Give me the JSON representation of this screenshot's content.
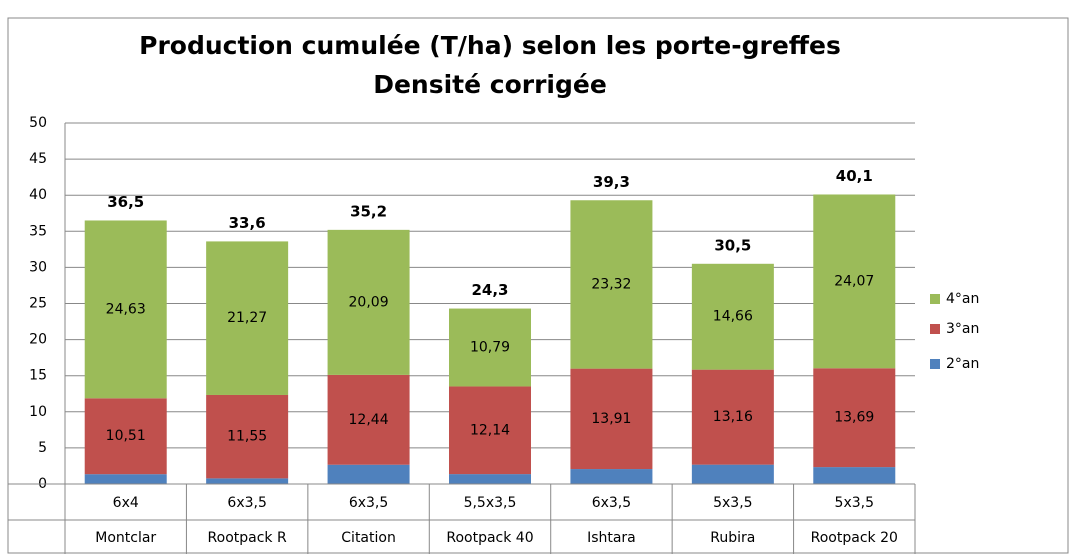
{
  "chart_data": {
    "type": "stacked_bar",
    "title": "Production cumulée (T/ha) selon les porte-greffes",
    "subtitle": "Densité corrigée",
    "categories": [
      "Montclar",
      "Rootpack R",
      "Citation",
      "Rootpack 40",
      "Ishtara",
      "Rubira",
      "Rootpack 20"
    ],
    "subcategories": [
      "6x4",
      "6x3,5",
      "6x3,5",
      "5,5x3,5",
      "6x3,5",
      "5x3,5",
      "5x3,5"
    ],
    "series": [
      {
        "name": "2°an",
        "color": "#4f81bd",
        "values": [
          1.36,
          0.78,
          2.67,
          1.37,
          2.07,
          2.68,
          2.34
        ]
      },
      {
        "name": "3°an",
        "color": "#c0504d",
        "values": [
          10.51,
          11.55,
          12.44,
          12.14,
          13.91,
          13.16,
          13.69
        ],
        "value_labels": [
          "10,51",
          "11,55",
          "12,44",
          "12,14",
          "13,91",
          "13,16",
          "13,69"
        ]
      },
      {
        "name": "4°an",
        "color": "#9bbb59",
        "values": [
          24.63,
          21.27,
          20.09,
          10.79,
          23.32,
          14.66,
          24.07
        ],
        "value_labels": [
          "24,63",
          "21,27",
          "20,09",
          "10,79",
          "23,32",
          "14,66",
          "24,07"
        ]
      }
    ],
    "totals": [
      36.5,
      33.6,
      35.2,
      24.3,
      39.3,
      30.5,
      40.1
    ],
    "total_labels": [
      "36,5",
      "33,6",
      "35,2",
      "24,3",
      "39,3",
      "30,5",
      "40,1"
    ],
    "ylim": [
      0,
      50
    ],
    "yticks": [
      0,
      5,
      10,
      15,
      20,
      25,
      30,
      35,
      40,
      45,
      50
    ],
    "grid": true,
    "legend": "right"
  }
}
